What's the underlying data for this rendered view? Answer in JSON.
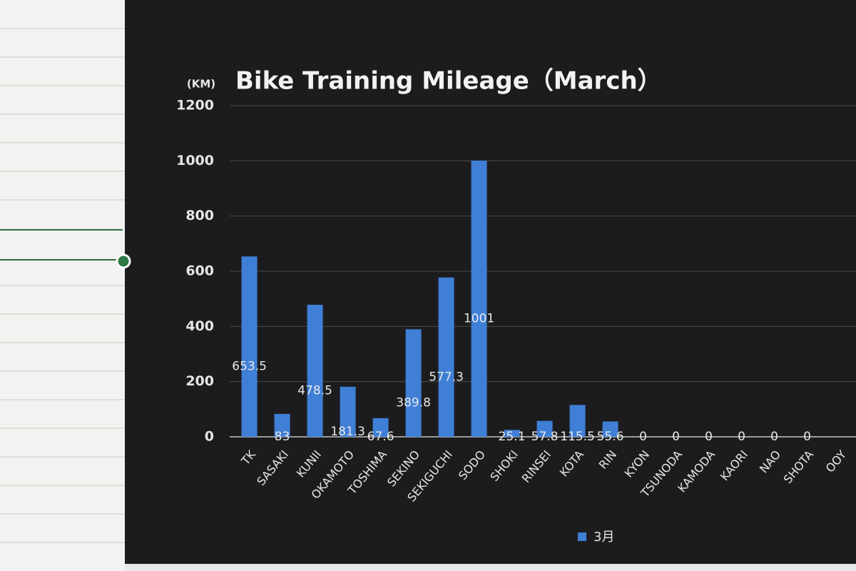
{
  "chart_data": {
    "type": "bar",
    "title": "Bike Training Mileage（March）",
    "y_label": "(KM)",
    "categories": [
      "TK",
      "SASAKI",
      "KUNII",
      "OKAMOTO",
      "TOSHIMA",
      "SEKINO",
      "SEKIGUCHI",
      "SODO",
      "SHOKI",
      "RINSEI",
      "KOTA",
      "RIN",
      "KYON",
      "TSUNODA",
      "KAMODA",
      "KAORI",
      "NAO",
      "SHOTA",
      "OOY"
    ],
    "series": [
      {
        "name": "3月",
        "color": "#3f7fd6",
        "values": [
          653.5,
          83,
          478.5,
          181.3,
          67.6,
          389.8,
          577.3,
          1001,
          25.1,
          57.8,
          115.5,
          55.6,
          0,
          0,
          0,
          0,
          0,
          0,
          0
        ],
        "value_labels": [
          "653.5",
          "83",
          "478.5",
          "181.3",
          "67.6",
          "389.8",
          "577.3",
          "1001",
          "25.1",
          "57.8",
          "115.5",
          "55.6",
          "0",
          "0",
          "0",
          "0",
          "0",
          "0",
          null
        ]
      }
    ],
    "ylim": [
      0,
      1200
    ],
    "yticks": [
      0,
      200,
      400,
      600,
      800,
      1000,
      1200
    ],
    "grid": true
  }
}
